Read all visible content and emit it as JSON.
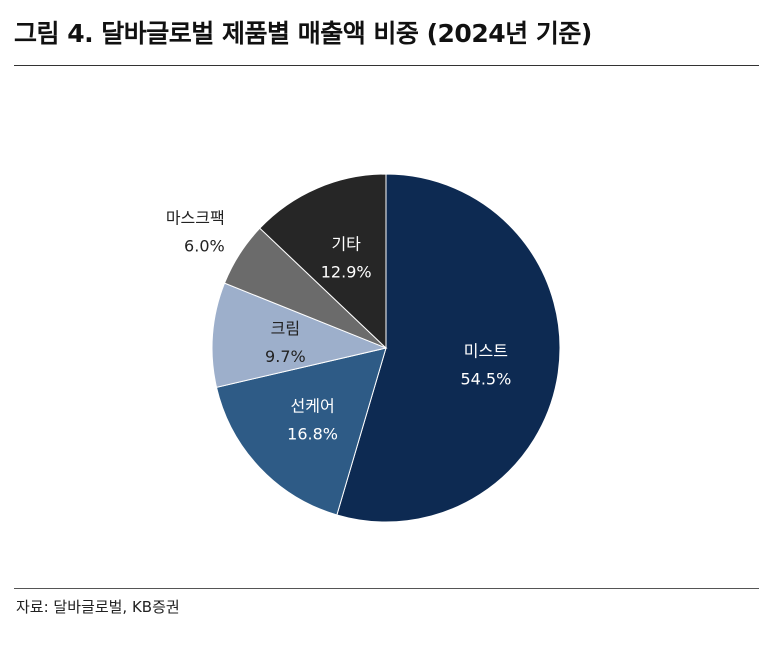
{
  "header": {
    "title": "그림 4. 달바글로벌 제품별 매출액 비중 (2024년 기준)"
  },
  "footer": {
    "source": "자료: 달바글로벌, KB증권"
  },
  "chart_data": {
    "type": "pie",
    "start_angle_deg": 0,
    "direction": "clockwise",
    "slices": [
      {
        "label": "미스트",
        "pct_label": "54.5%",
        "value": 54.5,
        "color": "#0d2a52",
        "text_color": "#ffffff",
        "label_pos": "inside"
      },
      {
        "label": "선케어",
        "pct_label": "16.8%",
        "value": 16.8,
        "color": "#2e5b86",
        "text_color": "#ffffff",
        "label_pos": "inside"
      },
      {
        "label": "크림",
        "pct_label": "9.7%",
        "value": 9.7,
        "color": "#9dafcb",
        "text_color": "#222222",
        "label_pos": "inside"
      },
      {
        "label": "마스크팩",
        "pct_label": "6.0%",
        "value": 6.0,
        "color": "#6b6b6b",
        "text_color": "#222222",
        "label_pos": "outside"
      },
      {
        "label": "기타",
        "pct_label": "12.9%",
        "value": 12.9,
        "color": "#262626",
        "text_color": "#ffffff",
        "label_pos": "inside"
      }
    ]
  }
}
